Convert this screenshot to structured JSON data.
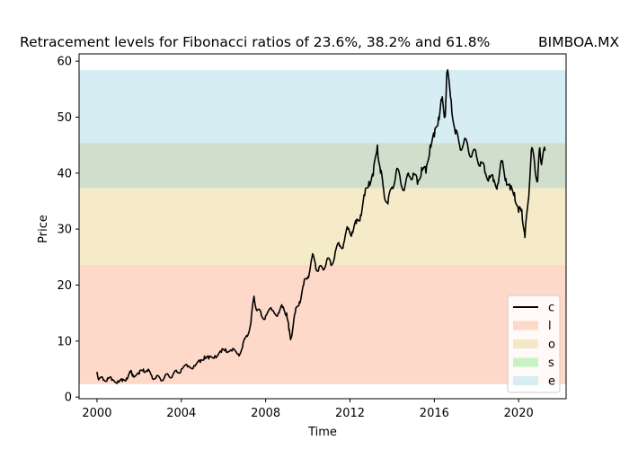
{
  "chart_data": {
    "type": "line",
    "title": "Retracement levels for Fibonacci ratios of 23.6%, 38.2% and 61.8%",
    "subtitle": "BIMBOA.MX",
    "xlabel": "Time",
    "ylabel": "Price",
    "xlim": [
      1999.15,
      2022.25
    ],
    "ylim": [
      -0.3,
      61.3
    ],
    "x_ticks": [
      2000,
      2004,
      2008,
      2012,
      2016,
      2020
    ],
    "y_ticks": [
      0,
      10,
      20,
      30,
      40,
      50,
      60
    ],
    "grid": false,
    "legend_position": "bottom-right",
    "bands": [
      {
        "name": "l",
        "from": 2.3,
        "to": 23.6,
        "color": "#fed8c8"
      },
      {
        "name": "o",
        "from": 23.6,
        "to": 37.3,
        "color": "#f5ebc8"
      },
      {
        "name": "s",
        "from": 37.3,
        "to": 45.4,
        "color": "#bde3c9"
      },
      {
        "name": "e",
        "from": 45.4,
        "to": 58.4,
        "color": "#d5edf3"
      }
    ],
    "band_overlay_note_colors": {
      "l": "#fed8c8",
      "o": "#f3e9c9",
      "s": "#c8f2c2",
      "e": "#d5edf3",
      "s_over_o": "#bde3c9",
      "e_over_o": "#d0dfcc"
    },
    "series": [
      {
        "name": "c",
        "color": "#000000",
        "x": [
          2000.0,
          2000.1,
          2000.3,
          2000.5,
          2000.7,
          2001.0,
          2001.2,
          2001.4,
          2001.6,
          2001.7,
          2002.0,
          2002.2,
          2002.4,
          2002.6,
          2002.8,
          2003.0,
          2003.2,
          2003.4,
          2003.6,
          2003.8,
          2004.0,
          2004.3,
          2004.6,
          2004.9,
          2005.1,
          2005.3,
          2005.6,
          2005.9,
          2006.1,
          2006.4,
          2006.7,
          2006.9,
          2007.1,
          2007.3,
          2007.45,
          2007.6,
          2007.8,
          2008.0,
          2008.3,
          2008.6,
          2008.8,
          2009.0,
          2009.1,
          2009.2,
          2009.4,
          2009.6,
          2009.8,
          2010.0,
          2010.2,
          2010.35,
          2010.5,
          2010.7,
          2010.9,
          2011.1,
          2011.3,
          2011.5,
          2011.7,
          2011.9,
          2012.1,
          2012.3,
          2012.5,
          2012.7,
          2012.9,
          2013.1,
          2013.3,
          2013.45,
          2013.6,
          2013.8,
          2014.0,
          2014.2,
          2014.4,
          2014.6,
          2014.8,
          2015.0,
          2015.2,
          2015.4,
          2015.6,
          2015.8,
          2016.0,
          2016.2,
          2016.35,
          2016.5,
          2016.6,
          2016.8,
          2017.0,
          2017.2,
          2017.4,
          2017.6,
          2017.8,
          2018.0,
          2018.2,
          2018.4,
          2018.6,
          2018.8,
          2019.0,
          2019.2,
          2019.4,
          2019.6,
          2019.8,
          2020.0,
          2020.15,
          2020.3,
          2020.45,
          2020.6,
          2020.75,
          2020.9,
          2021.0,
          2021.1,
          2021.25
        ],
        "y": [
          4.5,
          3.3,
          3.0,
          3.4,
          3.0,
          2.9,
          2.8,
          3.4,
          4.4,
          4.0,
          4.1,
          5.0,
          4.6,
          3.8,
          3.4,
          3.3,
          3.5,
          3.8,
          4.0,
          4.4,
          5.0,
          5.4,
          5.6,
          6.2,
          7.3,
          6.8,
          7.4,
          8.0,
          8.6,
          8.2,
          7.7,
          8.8,
          11.0,
          13.2,
          18.0,
          15.5,
          14.5,
          14.5,
          15.5,
          15.0,
          16.0,
          15.0,
          12.0,
          10.5,
          15.0,
          17.0,
          20.0,
          21.5,
          25.0,
          24.0,
          22.5,
          23.0,
          24.5,
          23.5,
          26.0,
          27.0,
          27.5,
          30.0,
          29.5,
          31.0,
          32.5,
          36.0,
          38.5,
          39.5,
          45.0,
          40.0,
          37.0,
          34.5,
          37.5,
          40.5,
          38.5,
          37.5,
          39.5,
          40.0,
          38.0,
          41.0,
          40.0,
          45.0,
          46.5,
          50.0,
          53.0,
          50.0,
          58.0,
          53.0,
          47.0,
          45.0,
          45.5,
          44.5,
          43.5,
          43.0,
          42.0,
          40.0,
          39.5,
          38.5,
          38.0,
          42.0,
          39.0,
          37.0,
          36.5,
          33.0,
          33.5,
          28.5,
          35.0,
          44.0,
          42.0,
          38.5,
          44.5,
          42.0,
          44.0
        ]
      }
    ]
  }
}
